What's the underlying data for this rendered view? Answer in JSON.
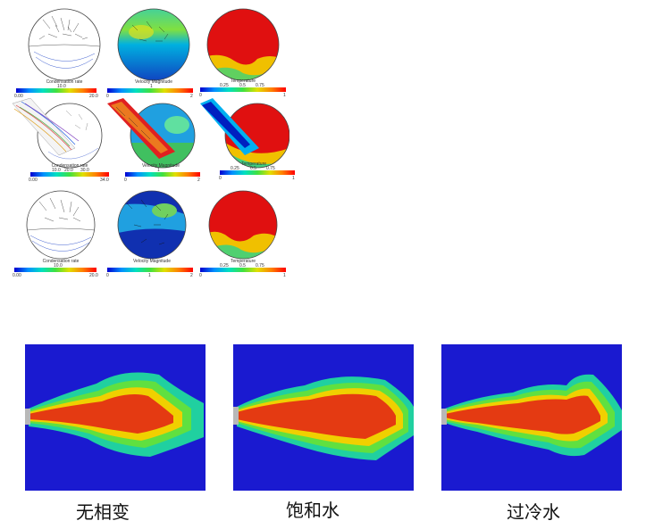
{
  "colors": {
    "jet_bg": "#1a1ad0",
    "jet_core": "#e43a12",
    "jet_mid": "#f0e000",
    "jet_edge": "#20d080"
  },
  "top_figure": {
    "rows": [
      {
        "condensation": {
          "caption": "Condensation rate",
          "mid_tick": "10.0",
          "min_tick": "0.00",
          "max_tick": "20.0"
        },
        "velocity": {
          "caption": "Velocity Magnitude",
          "mid_tick": "1",
          "min_tick": "0",
          "max_tick": "2"
        },
        "temperature": {
          "caption": "Temperature",
          "ticks": [
            "0.25",
            "0.5",
            "0.75"
          ],
          "min_tick": "0",
          "max_tick": "1"
        }
      },
      {
        "condensation": {
          "caption": "Condensation rate",
          "mid_ticks": [
            "10.0",
            "20.0",
            "30.0"
          ],
          "min_tick": "0.00",
          "max_tick": "34.0"
        },
        "velocity": {
          "caption": "Velocity Magnitude",
          "mid_tick": "1",
          "min_tick": "0",
          "max_tick": "2"
        },
        "temperature": {
          "caption": "Temperature",
          "ticks": [
            "0.25",
            "0.5",
            "0.75"
          ],
          "min_tick": "0",
          "max_tick": "1"
        }
      },
      {
        "condensation": {
          "caption": "Condensation rate",
          "mid_tick": "10.0",
          "min_tick": "0.00",
          "max_tick": "20.0"
        },
        "velocity": {
          "caption": "Velocity Magnitude",
          "mid_tick": "1",
          "min_tick": "0",
          "max_tick": "2"
        },
        "temperature": {
          "caption": "Temperature",
          "ticks": [
            "0.25",
            "0.5",
            "0.75"
          ],
          "min_tick": "0",
          "max_tick": "1"
        }
      }
    ]
  },
  "jets": [
    {
      "label": "无相变"
    },
    {
      "label": "饱和水"
    },
    {
      "label": "过冷水"
    }
  ]
}
